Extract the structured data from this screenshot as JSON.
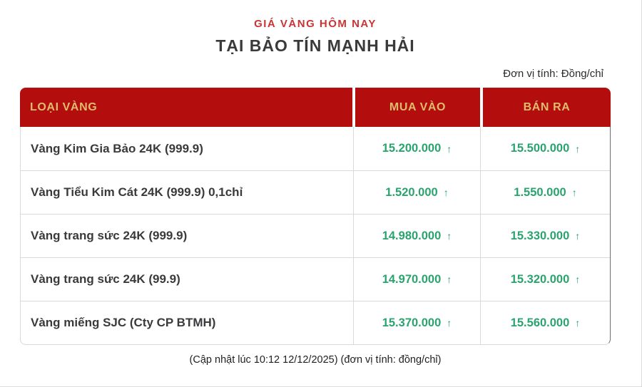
{
  "header": {
    "subtitle": "GIÁ VÀNG HÔM NAY",
    "title": "TẠI BẢO TÍN MẠNH HẢI",
    "unit_note": "Đơn vị tính: Đồng/chỉ"
  },
  "table": {
    "columns": [
      "LOẠI VÀNG",
      "MUA VÀO",
      "BÁN RA"
    ],
    "trend_arrow": "↑",
    "rows": [
      {
        "name": "Vàng Kim Gia Bảo 24K (999.9)",
        "buy": "15.200.000",
        "sell": "15.500.000",
        "buy_trend": "up",
        "sell_trend": "up"
      },
      {
        "name": "Vàng Tiểu Kim Cát 24K (999.9) 0,1chỉ",
        "buy": "1.520.000",
        "sell": "1.550.000",
        "buy_trend": "up",
        "sell_trend": "up"
      },
      {
        "name": "Vàng trang sức 24K (999.9)",
        "buy": "14.980.000",
        "sell": "15.330.000",
        "buy_trend": "up",
        "sell_trend": "up"
      },
      {
        "name": "Vàng trang sức 24K (99.9)",
        "buy": "14.970.000",
        "sell": "15.320.000",
        "buy_trend": "up",
        "sell_trend": "up"
      },
      {
        "name": "Vàng miếng SJC (Cty CP BTMH)",
        "buy": "15.370.000",
        "sell": "15.560.000",
        "buy_trend": "up",
        "sell_trend": "up"
      }
    ]
  },
  "footer": {
    "note": "(Cập nhật lúc 10:12 12/12/2025) (đơn vị tính: đồng/chỉ)"
  },
  "colors": {
    "header_background": "#b30d0d",
    "header_text_gold": "#dfbc6d",
    "subtitle_red": "#c93434",
    "price_green": "#2ba36e",
    "body_text": "#3a3a3c",
    "row_border": "#d9d9d9"
  },
  "chart_data": {
    "type": "table",
    "title": "GIÁ VÀNG HÔM NAY TẠI BẢO TÍN MẠNH HẢI",
    "unit": "Đồng/chỉ",
    "updated_at": "10:12 12/12/2025",
    "columns": [
      "LOẠI VÀNG",
      "MUA VÀO",
      "BÁN RA"
    ],
    "rows": [
      [
        "Vàng Kim Gia Bảo 24K (999.9)",
        15200000,
        15500000
      ],
      [
        "Vàng Tiểu Kim Cát 24K (999.9) 0,1chỉ",
        1520000,
        1550000
      ],
      [
        "Vàng trang sức 24K (999.9)",
        14980000,
        15330000
      ],
      [
        "Vàng trang sức 24K (99.9)",
        14970000,
        15320000
      ],
      [
        "Vàng miếng SJC (Cty CP BTMH)",
        15370000,
        15560000
      ]
    ],
    "trend": "all prices marked with up arrow"
  }
}
